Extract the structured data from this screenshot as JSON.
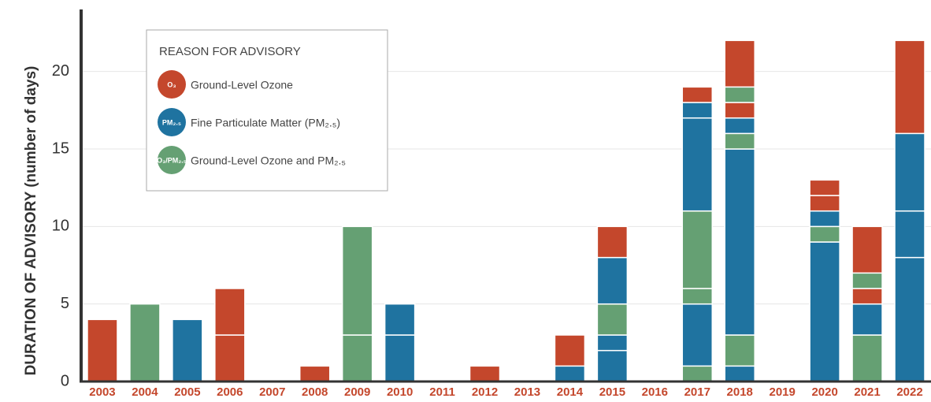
{
  "chart_data": {
    "type": "stacked-bar",
    "y_label": "DURATION OF ADVISORY (number of days)",
    "legend_title": "REASON FOR ADVISORY",
    "ylim": [
      0,
      24
    ],
    "yticks": [
      0,
      5,
      10,
      15,
      20
    ],
    "grid": true,
    "series": [
      {
        "name": "Ground-Level Ozone",
        "icon": "O₃",
        "color": "#c4472c"
      },
      {
        "name": "Fine Particulate Matter (PM₂.₅)",
        "icon": "PM₂.₅",
        "color": "#1f73a0"
      },
      {
        "name": "Ground-Level Ozone and PM₂.₅",
        "icon": "O₃/PM₂.₅",
        "color": "#65a073"
      }
    ],
    "categories": [
      "2003",
      "2004",
      "2005",
      "2006",
      "2007",
      "2008",
      "2009",
      "2010",
      "2011",
      "2012",
      "2013",
      "2014",
      "2015",
      "2016",
      "2017",
      "2018",
      "2019",
      "2020",
      "2021",
      "2022"
    ],
    "segments": [
      [
        {
          "color": "#c4472c",
          "value": 4
        }
      ],
      [
        {
          "color": "#65a073",
          "value": 5
        }
      ],
      [
        {
          "color": "#1f73a0",
          "value": 4
        }
      ],
      [
        {
          "color": "#c4472c",
          "value": 3
        },
        {
          "color": "#c4472c",
          "value": 3
        }
      ],
      [],
      [
        {
          "color": "#c4472c",
          "value": 1
        }
      ],
      [
        {
          "color": "#65a073",
          "value": 3
        },
        {
          "color": "#65a073",
          "value": 7
        }
      ],
      [
        {
          "color": "#1f73a0",
          "value": 3
        },
        {
          "color": "#1f73a0",
          "value": 2
        }
      ],
      [],
      [
        {
          "color": "#c4472c",
          "value": 1
        }
      ],
      [],
      [
        {
          "color": "#1f73a0",
          "value": 1
        },
        {
          "color": "#c4472c",
          "value": 2
        }
      ],
      [
        {
          "color": "#1f73a0",
          "value": 2
        },
        {
          "color": "#1f73a0",
          "value": 1
        },
        {
          "color": "#65a073",
          "value": 2
        },
        {
          "color": "#1f73a0",
          "value": 3
        },
        {
          "color": "#c4472c",
          "value": 2
        }
      ],
      [],
      [
        {
          "color": "#65a073",
          "value": 1
        },
        {
          "color": "#1f73a0",
          "value": 4
        },
        {
          "color": "#65a073",
          "value": 1
        },
        {
          "color": "#65a073",
          "value": 5
        },
        {
          "color": "#1f73a0",
          "value": 6
        },
        {
          "color": "#1f73a0",
          "value": 1
        },
        {
          "color": "#c4472c",
          "value": 1
        }
      ],
      [
        {
          "color": "#1f73a0",
          "value": 1
        },
        {
          "color": "#65a073",
          "value": 2
        },
        {
          "color": "#1f73a0",
          "value": 12
        },
        {
          "color": "#65a073",
          "value": 1
        },
        {
          "color": "#1f73a0",
          "value": 1
        },
        {
          "color": "#c4472c",
          "value": 1
        },
        {
          "color": "#65a073",
          "value": 1
        },
        {
          "color": "#c4472c",
          "value": 3
        }
      ],
      [],
      [
        {
          "color": "#1f73a0",
          "value": 9
        },
        {
          "color": "#65a073",
          "value": 1
        },
        {
          "color": "#1f73a0",
          "value": 1
        },
        {
          "color": "#c4472c",
          "value": 1
        },
        {
          "color": "#c4472c",
          "value": 1
        }
      ],
      [
        {
          "color": "#65a073",
          "value": 3
        },
        {
          "color": "#1f73a0",
          "value": 2
        },
        {
          "color": "#c4472c",
          "value": 1
        },
        {
          "color": "#65a073",
          "value": 1
        },
        {
          "color": "#c4472c",
          "value": 3
        }
      ],
      [
        {
          "color": "#1f73a0",
          "value": 8
        },
        {
          "color": "#1f73a0",
          "value": 3
        },
        {
          "color": "#1f73a0",
          "value": 5
        },
        {
          "color": "#c4472c",
          "value": 6
        }
      ]
    ]
  }
}
